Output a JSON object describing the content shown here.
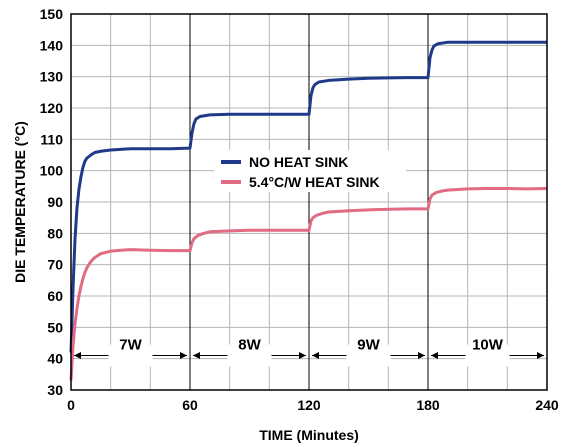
{
  "chart_data": {
    "type": "line",
    "xlabel": "TIME (Minutes)",
    "ylabel": "DIE TEMPERATURE (°C)",
    "xlim": [
      0,
      240
    ],
    "ylim": [
      30,
      150
    ],
    "xticks": [
      0,
      60,
      120,
      180,
      240
    ],
    "yticks": [
      30,
      40,
      50,
      60,
      70,
      80,
      90,
      100,
      110,
      120,
      130,
      140,
      150
    ],
    "grid": true,
    "legend_position": "center",
    "power_intervals": [
      {
        "label": "7W",
        "start": 0,
        "end": 60
      },
      {
        "label": "8W",
        "start": 60,
        "end": 120
      },
      {
        "label": "9W",
        "start": 120,
        "end": 180
      },
      {
        "label": "10W",
        "start": 180,
        "end": 240
      }
    ],
    "power_arrow_y": 41,
    "series": [
      {
        "name": "NO HEAT SINK",
        "color": "#1f3a8a",
        "points": [
          [
            0,
            42
          ],
          [
            1,
            62
          ],
          [
            2,
            78
          ],
          [
            3,
            88
          ],
          [
            4,
            94
          ],
          [
            5,
            98
          ],
          [
            6,
            101
          ],
          [
            7,
            103
          ],
          [
            8,
            104
          ],
          [
            10,
            105
          ],
          [
            12,
            105.8
          ],
          [
            15,
            106.2
          ],
          [
            20,
            106.6
          ],
          [
            25,
            106.8
          ],
          [
            30,
            107
          ],
          [
            40,
            107
          ],
          [
            50,
            107
          ],
          [
            60,
            107.2
          ],
          [
            61,
            112
          ],
          [
            62,
            115
          ],
          [
            63,
            116.5
          ],
          [
            65,
            117.3
          ],
          [
            70,
            117.8
          ],
          [
            80,
            118
          ],
          [
            90,
            118
          ],
          [
            100,
            118
          ],
          [
            110,
            118
          ],
          [
            120,
            118
          ],
          [
            121,
            124
          ],
          [
            122,
            126.5
          ],
          [
            123,
            127.5
          ],
          [
            125,
            128.3
          ],
          [
            130,
            128.8
          ],
          [
            140,
            129.2
          ],
          [
            150,
            129.5
          ],
          [
            160,
            129.6
          ],
          [
            170,
            129.7
          ],
          [
            180,
            129.7
          ],
          [
            181,
            136
          ],
          [
            182,
            138.5
          ],
          [
            183,
            139.8
          ],
          [
            185,
            140.5
          ],
          [
            190,
            141
          ],
          [
            200,
            141
          ],
          [
            210,
            141
          ],
          [
            220,
            141
          ],
          [
            230,
            141
          ],
          [
            240,
            141
          ]
        ]
      },
      {
        "name": "5.4°C/W HEAT SINK",
        "color": "#e06b82",
        "points": [
          [
            0,
            33
          ],
          [
            1,
            44
          ],
          [
            2,
            51
          ],
          [
            3,
            56
          ],
          [
            4,
            60
          ],
          [
            5,
            63
          ],
          [
            6,
            65.5
          ],
          [
            7,
            67.5
          ],
          [
            8,
            69
          ],
          [
            10,
            71
          ],
          [
            12,
            72.3
          ],
          [
            15,
            73.5
          ],
          [
            20,
            74.3
          ],
          [
            25,
            74.6
          ],
          [
            30,
            74.8
          ],
          [
            40,
            74.6
          ],
          [
            50,
            74.5
          ],
          [
            60,
            74.5
          ],
          [
            61,
            77
          ],
          [
            62,
            78.3
          ],
          [
            64,
            79.3
          ],
          [
            67,
            80
          ],
          [
            70,
            80.5
          ],
          [
            80,
            80.8
          ],
          [
            90,
            81
          ],
          [
            100,
            81
          ],
          [
            110,
            81
          ],
          [
            120,
            81
          ],
          [
            121,
            84
          ],
          [
            122,
            85
          ],
          [
            124,
            85.8
          ],
          [
            127,
            86.4
          ],
          [
            130,
            86.8
          ],
          [
            140,
            87.2
          ],
          [
            150,
            87.5
          ],
          [
            160,
            87.7
          ],
          [
            170,
            87.8
          ],
          [
            180,
            87.8
          ],
          [
            181,
            91
          ],
          [
            182,
            92.2
          ],
          [
            184,
            93
          ],
          [
            187,
            93.5
          ],
          [
            190,
            93.8
          ],
          [
            200,
            94.2
          ],
          [
            210,
            94.3
          ],
          [
            220,
            94.3
          ],
          [
            230,
            94.2
          ],
          [
            240,
            94.3
          ]
        ]
      }
    ]
  }
}
